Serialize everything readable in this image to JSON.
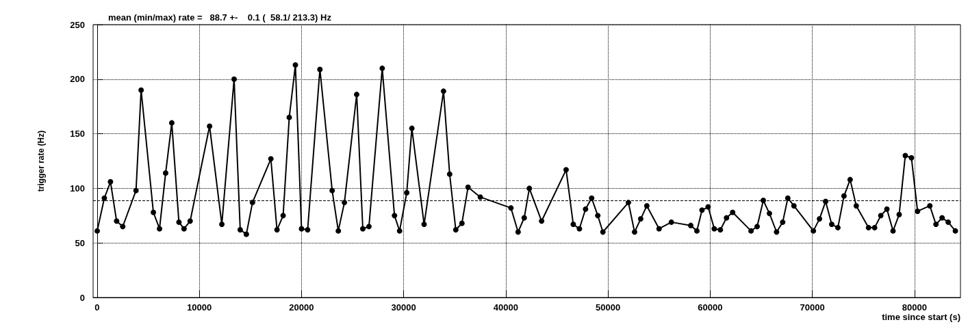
{
  "chart_data": {
    "type": "line",
    "title": "mean (min/max) rate =   88.7 +-    0.1 (  58.1/ 213.3) Hz",
    "xlabel": "time since start (s)",
    "ylabel": "trigger rate (Hz)",
    "x": [
      0,
      700,
      1300,
      1900,
      2500,
      3800,
      4300,
      5500,
      6100,
      6700,
      7300,
      8000,
      8500,
      9100,
      11000,
      12200,
      13400,
      14000,
      14600,
      15200,
      17000,
      17600,
      18200,
      18800,
      19400,
      20000,
      20600,
      21800,
      23000,
      23600,
      24200,
      25400,
      26000,
      26600,
      27900,
      29100,
      29600,
      30300,
      30800,
      32000,
      33900,
      34500,
      35100,
      35700,
      36300,
      37500,
      40500,
      41200,
      41800,
      42300,
      43500,
      45900,
      46600,
      47200,
      47800,
      48400,
      49000,
      49500,
      52000,
      52600,
      53200,
      53800,
      55000,
      56200,
      58100,
      58700,
      59200,
      59800,
      60400,
      61000,
      61600,
      62200,
      64000,
      64600,
      65200,
      65800,
      66500,
      67100,
      67600,
      68200,
      70100,
      70700,
      71300,
      71900,
      72500,
      73100,
      73700,
      74300,
      75500,
      76100,
      76700,
      77300,
      77900,
      78500,
      79100,
      79700,
      80300,
      81500,
      82100,
      82700,
      83300,
      84000
    ],
    "values": [
      61,
      91,
      106,
      70,
      65,
      98,
      190,
      78,
      63,
      114,
      160,
      69,
      63,
      70,
      157,
      67,
      200,
      62,
      58,
      87,
      127,
      62,
      75,
      165,
      213,
      63,
      62,
      209,
      98,
      61,
      87,
      186,
      63,
      65,
      210,
      75,
      61,
      96,
      155,
      67,
      189,
      113,
      62,
      68,
      101,
      92,
      82,
      60,
      73,
      100,
      70,
      117,
      67,
      63,
      81,
      91,
      75,
      60,
      87,
      60,
      72,
      84,
      63,
      69,
      66,
      61,
      80,
      83,
      63,
      62,
      73,
      78,
      61,
      65,
      89,
      77,
      60,
      69,
      91,
      84,
      61,
      72,
      88,
      67,
      64,
      93,
      108,
      84,
      64,
      64,
      75,
      81,
      61,
      76,
      130,
      128,
      79,
      84,
      67,
      73,
      69,
      61
    ],
    "color": "#000000",
    "marker": "circle",
    "line_style": "solid",
    "xlim": [
      -400,
      84500
    ],
    "xticks": [
      0,
      10000,
      20000,
      30000,
      40000,
      50000,
      60000,
      70000,
      80000
    ],
    "ylim": [
      0,
      250
    ],
    "yticks": [
      0,
      50,
      100,
      150,
      200,
      250
    ],
    "grid": true,
    "ref_lines": [
      {
        "axis": "y",
        "value": 88.7,
        "line_style": "dashed",
        "color": "#000000"
      }
    ]
  }
}
